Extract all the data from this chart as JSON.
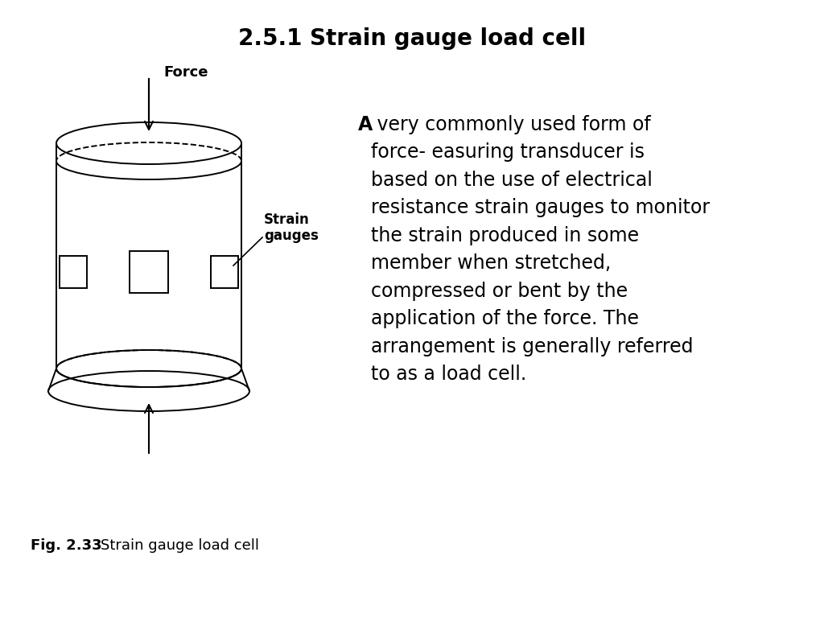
{
  "title": "2.5.1 Strain gauge load cell",
  "title_fontsize": 20,
  "title_fontweight": "bold",
  "body_text_bold": "A",
  "body_text_rest": " very commonly used form of\nforce- easuring transducer is\nbased on the use of electrical\nresistance strain gauges to monitor\nthe strain produced in some\nmember when stretched,\ncompressed or bent by the\napplication of the force. The\narrangement is generally referred\nto as a load cell.",
  "fig_label": "Fig. 2.33",
  "fig_caption": "Strain gauge load cell",
  "force_label": "Force",
  "strain_label": "Strain\ngauges",
  "background_color": "#ffffff",
  "text_color": "#000000",
  "line_color": "#000000",
  "body_fontsize": 17,
  "caption_fontsize": 13,
  "font_family": "DejaVu Sans"
}
